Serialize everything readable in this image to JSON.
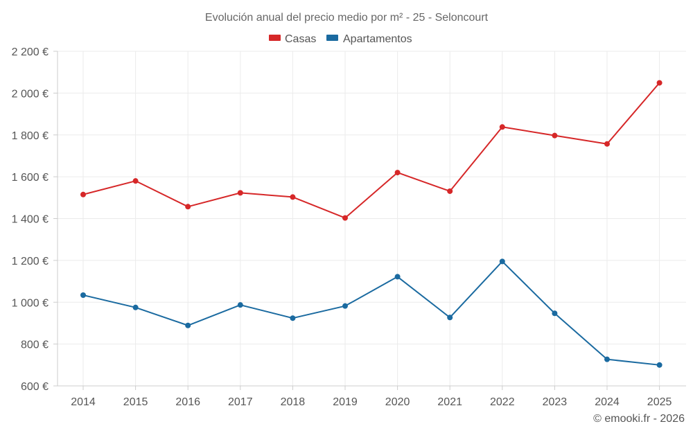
{
  "chart_data": {
    "type": "line",
    "title": "Evolución anual del precio medio por m² - 25 - Seloncourt",
    "xlabel": "",
    "ylabel": "",
    "categories": [
      "2014",
      "2015",
      "2016",
      "2017",
      "2018",
      "2019",
      "2020",
      "2021",
      "2022",
      "2023",
      "2024",
      "2025"
    ],
    "ylim": [
      600,
      2200
    ],
    "yticks": [
      600,
      800,
      1000,
      1200,
      1400,
      1600,
      1800,
      2000,
      2200
    ],
    "ytick_labels": [
      "600 €",
      "800 €",
      "1 000 €",
      "1 200 €",
      "1 400 €",
      "1 600 €",
      "1 800 €",
      "2 000 €",
      "2 200 €"
    ],
    "grid": true,
    "legend_position": "top-center",
    "series": [
      {
        "name": "Casas",
        "color": "#d62728",
        "values": [
          1515,
          1580,
          1457,
          1523,
          1503,
          1403,
          1620,
          1531,
          1838,
          1797,
          1757,
          2049
        ]
      },
      {
        "name": "Apartamentos",
        "color": "#1a6aa0",
        "values": [
          1034,
          975,
          889,
          987,
          924,
          982,
          1122,
          927,
          1195,
          947,
          727,
          700
        ]
      }
    ]
  },
  "credit": "© emooki.fr - 2026"
}
